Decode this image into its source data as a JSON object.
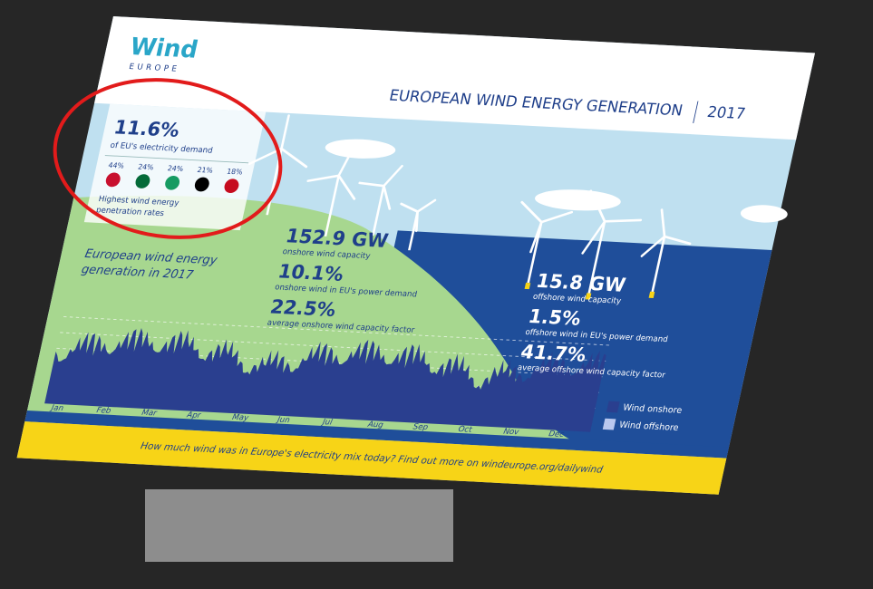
{
  "header": {
    "logo": "Wind",
    "logo_sub": "EUROPE",
    "title": "EUROPEAN WIND ENERGY GENERATION",
    "year": "2017"
  },
  "highlight": {
    "value": "11.6%",
    "caption": "of EU's electricity demand",
    "shares": [
      "44%",
      "24%",
      "24%",
      "21%",
      "18%"
    ],
    "caption_lines": [
      "Highest wind energy",
      "penetration rates"
    ]
  },
  "onshore": [
    {
      "value": "152.9 GW",
      "label": "onshore wind capacity"
    },
    {
      "value": "10.1%",
      "label": "onshore wind in EU's power demand"
    },
    {
      "value": "22.5%",
      "label": "average onshore wind capacity factor"
    }
  ],
  "offshore": [
    {
      "value": "15.8 GW",
      "label": "offshore wind capacity"
    },
    {
      "value": "1.5%",
      "label": "offshore wind in EU's power demand"
    },
    {
      "value": "41.7%",
      "label": "average offshore wind capacity factor"
    }
  ],
  "chart": {
    "title_lines": [
      "European wind energy",
      "generation in 2017"
    ],
    "months": [
      "Jan",
      "Feb",
      "Mar",
      "Apr",
      "May",
      "Jun",
      "Jul",
      "Aug",
      "Sep",
      "Oct",
      "Nov",
      "Dec"
    ],
    "legend": [
      "Wind onshore",
      "Wind offshore"
    ]
  },
  "footer": "How much wind was in Europe's electricity mix today? Find out more on windeurope.org/dailywind"
}
